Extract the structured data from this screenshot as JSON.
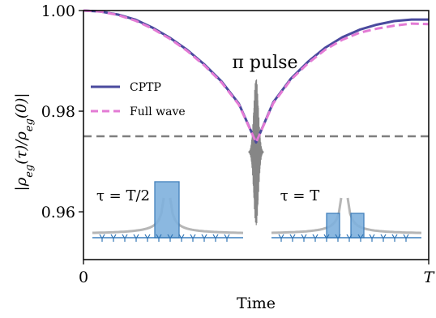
{
  "chart_data": {
    "type": "line",
    "xlabel": "Time",
    "ylabel": "|ρ_eg(τ)/ρ_eg(0)|",
    "xlim": [
      0,
      1
    ],
    "ylim": [
      0.9505,
      1.0
    ],
    "x_ticks": [
      {
        "value": 0,
        "label": "0"
      },
      {
        "value": 1,
        "label": "T"
      }
    ],
    "y_ticks": [
      {
        "value": 0.96,
        "label": "0.96"
      },
      {
        "value": 0.98,
        "label": "0.98"
      },
      {
        "value": 1.0,
        "label": "1.00"
      }
    ],
    "series": [
      {
        "name": "CPTP",
        "color": "#4a4a9e",
        "style": "solid",
        "x": [
          0,
          0.05,
          0.1,
          0.15,
          0.2,
          0.25,
          0.3,
          0.35,
          0.4,
          0.45,
          0.5,
          0.55,
          0.6,
          0.65,
          0.7,
          0.75,
          0.8,
          0.85,
          0.9,
          0.95,
          1.0
        ],
        "y": [
          1.0,
          0.9998,
          0.9992,
          0.9982,
          0.9966,
          0.9946,
          0.9922,
          0.9893,
          0.9859,
          0.9815,
          0.9738,
          0.9818,
          0.9864,
          0.9898,
          0.9926,
          0.9947,
          0.9962,
          0.9972,
          0.9979,
          0.9982,
          0.9982
        ]
      },
      {
        "name": "Full wave",
        "color": "#e37bd5",
        "style": "dashed",
        "x": [
          0,
          0.05,
          0.1,
          0.15,
          0.2,
          0.25,
          0.3,
          0.35,
          0.4,
          0.45,
          0.5,
          0.55,
          0.6,
          0.65,
          0.7,
          0.75,
          0.8,
          0.85,
          0.9,
          0.95,
          1.0
        ],
        "y": [
          1.0,
          0.9998,
          0.9991,
          0.998,
          0.9964,
          0.9944,
          0.992,
          0.9891,
          0.9857,
          0.9813,
          0.9738,
          0.9816,
          0.9862,
          0.9895,
          0.9922,
          0.9942,
          0.9956,
          0.9964,
          0.997,
          0.9974,
          0.9973
        ]
      }
    ],
    "reference_line": {
      "y": 0.975,
      "color": "#7f7f7f",
      "style": "dashed"
    },
    "legend": {
      "placement": "center-left",
      "entries": [
        "CPTP",
        "Full wave"
      ]
    },
    "annotations": {
      "pulse": "π pulse",
      "left_inset": "τ = T/2",
      "right_inset": "τ = T"
    },
    "grid": false
  }
}
